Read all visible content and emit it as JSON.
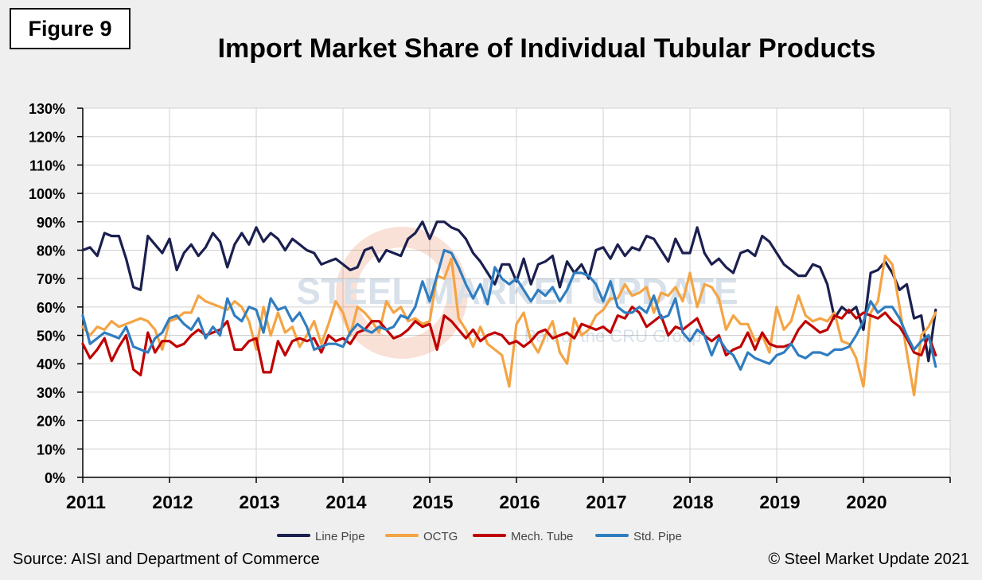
{
  "figure_label": "Figure 9",
  "footer": {
    "source": "Source: AISI and Department of Commerce",
    "copyright": "© Steel Market Update 2021"
  },
  "watermark": {
    "brand": "STEEL MARKET UPDATE",
    "tagline": "Part of the CRU Group"
  },
  "colors": {
    "line_pipe": "#1b1f4f",
    "octg": "#f4a444",
    "mech_tube": "#c00000",
    "std_pipe": "#2f7dc0",
    "grid": "#d0d0d0",
    "plot_bg": "#ffffff"
  },
  "chart_data": {
    "type": "line",
    "title": "Import Market Share of Individual Tubular Products",
    "xlabel": "",
    "ylabel": "",
    "x_ticks": [
      "2011",
      "2012",
      "2013",
      "2014",
      "2015",
      "2016",
      "2017",
      "2018",
      "2019",
      "2020"
    ],
    "y_ticks": [
      "0%",
      "10%",
      "20%",
      "30%",
      "40%",
      "50%",
      "60%",
      "70%",
      "80%",
      "90%",
      "100%",
      "110%",
      "120%",
      "130%"
    ],
    "ylim": [
      0,
      130
    ],
    "x_start": 2011,
    "months_per_point": 1,
    "grid": true,
    "legend_position": "bottom",
    "series": [
      {
        "name": "Line Pipe",
        "color_key": "line_pipe",
        "values": [
          80,
          81,
          78,
          86,
          85,
          85,
          77,
          67,
          66,
          85,
          82,
          79,
          84,
          73,
          79,
          82,
          78,
          81,
          86,
          83,
          74,
          82,
          86,
          82,
          88,
          83,
          86,
          84,
          80,
          84,
          82,
          80,
          79,
          75,
          76,
          77,
          75,
          73,
          74,
          80,
          81,
          76,
          80,
          79,
          78,
          84,
          86,
          90,
          84,
          90,
          90,
          88,
          87,
          84,
          79,
          76,
          72,
          68,
          75,
          75,
          69,
          77,
          68,
          75,
          76,
          78,
          67,
          76,
          72,
          75,
          70,
          80,
          81,
          77,
          82,
          78,
          81,
          80,
          85,
          84,
          80,
          76,
          84,
          79,
          79,
          88,
          79,
          75,
          77,
          74,
          72,
          79,
          80,
          78,
          85,
          83,
          79,
          75,
          73,
          71,
          71,
          75,
          74,
          68,
          56,
          60,
          58,
          60,
          52,
          72,
          73,
          76,
          72,
          66,
          68,
          56,
          57,
          41,
          59
        ]
      },
      {
        "name": "OCTG",
        "color_key": "octg",
        "values": [
          53,
          50,
          53,
          52,
          55,
          53,
          54,
          55,
          56,
          55,
          52,
          45,
          55,
          56,
          58,
          58,
          64,
          62,
          61,
          60,
          59,
          62,
          60,
          55,
          45,
          60,
          50,
          58,
          51,
          53,
          46,
          50,
          55,
          47,
          54,
          62,
          58,
          50,
          60,
          58,
          55,
          51,
          62,
          58,
          60,
          55,
          56,
          54,
          55,
          71,
          70,
          77,
          56,
          52,
          46,
          53,
          47,
          45,
          43,
          32,
          54,
          58,
          48,
          44,
          50,
          55,
          44,
          40,
          56,
          50,
          52,
          57,
          59,
          63,
          63,
          68,
          64,
          65,
          67,
          58,
          65,
          64,
          67,
          62,
          72,
          60,
          68,
          67,
          63,
          52,
          57,
          54,
          54,
          48,
          50,
          44,
          60,
          52,
          55,
          64,
          57,
          55,
          56,
          55,
          58,
          48,
          47,
          42,
          32,
          58,
          62,
          78,
          75,
          60,
          44,
          29,
          50,
          53,
          58
        ]
      },
      {
        "name": "Mech. Tube",
        "color_key": "mech_tube",
        "values": [
          47,
          42,
          45,
          49,
          41,
          46,
          50,
          38,
          36,
          51,
          44,
          48,
          48,
          46,
          47,
          50,
          52,
          50,
          51,
          52,
          55,
          45,
          45,
          48,
          49,
          37,
          37,
          48,
          43,
          48,
          49,
          48,
          49,
          44,
          50,
          48,
          49,
          47,
          51,
          52,
          55,
          55,
          52,
          49,
          50,
          52,
          55,
          53,
          54,
          45,
          57,
          55,
          52,
          49,
          52,
          48,
          50,
          51,
          50,
          47,
          48,
          46,
          48,
          51,
          52,
          49,
          50,
          51,
          49,
          54,
          53,
          52,
          53,
          51,
          57,
          56,
          60,
          58,
          53,
          55,
          57,
          50,
          53,
          52,
          54,
          56,
          50,
          48,
          50,
          43,
          45,
          46,
          51,
          45,
          51,
          47,
          46,
          46,
          47,
          52,
          55,
          53,
          51,
          52,
          57,
          56,
          59,
          56,
          58,
          57,
          56,
          58,
          55,
          53,
          49,
          44,
          43,
          50,
          43
        ]
      },
      {
        "name": "Std. Pipe",
        "color_key": "std_pipe",
        "values": [
          57,
          47,
          49,
          51,
          50,
          49,
          53,
          46,
          45,
          44,
          49,
          51,
          56,
          57,
          54,
          52,
          56,
          49,
          53,
          50,
          63,
          57,
          55,
          60,
          59,
          51,
          63,
          59,
          60,
          55,
          58,
          53,
          45,
          46,
          47,
          47,
          46,
          51,
          54,
          52,
          51,
          53,
          52,
          53,
          57,
          56,
          60,
          69,
          62,
          71,
          80,
          79,
          74,
          68,
          63,
          68,
          61,
          74,
          70,
          68,
          70,
          66,
          62,
          66,
          64,
          67,
          62,
          66,
          72,
          72,
          71,
          68,
          62,
          69,
          60,
          58,
          58,
          60,
          58,
          64,
          56,
          57,
          63,
          51,
          48,
          52,
          50,
          43,
          49,
          45,
          43,
          38,
          44,
          42,
          41,
          40,
          43,
          44,
          47,
          43,
          42,
          44,
          44,
          43,
          45,
          45,
          46,
          50,
          55,
          62,
          58,
          60,
          60,
          56,
          50,
          45,
          48,
          50,
          39
        ]
      }
    ]
  }
}
